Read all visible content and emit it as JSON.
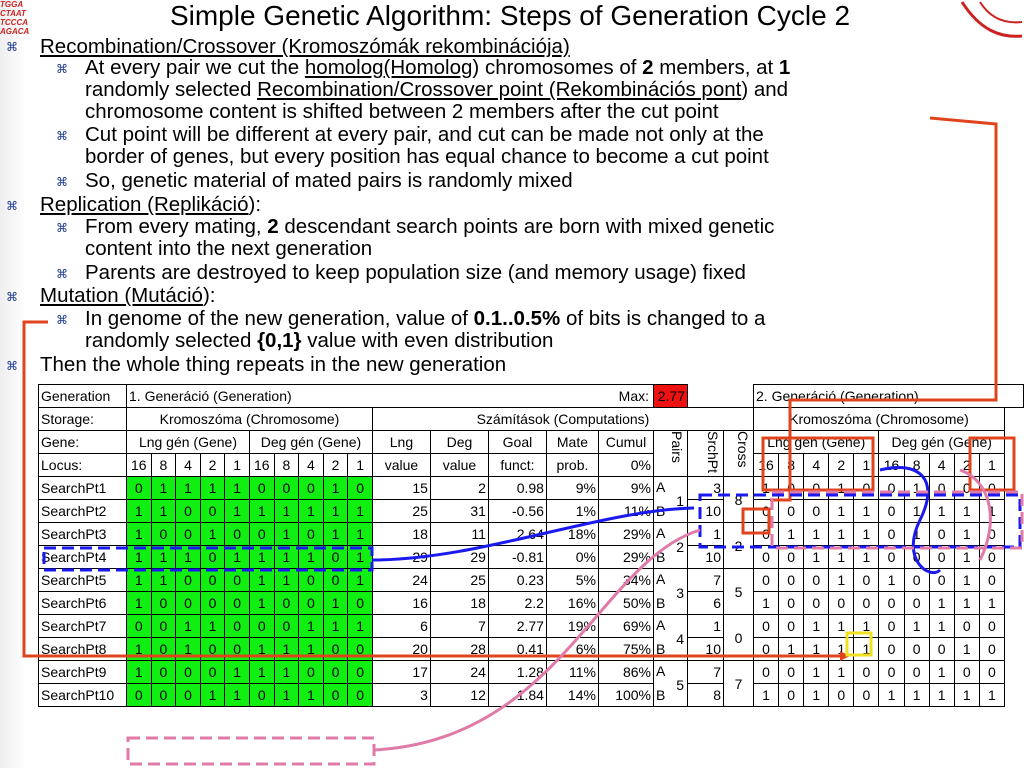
{
  "title": "Simple Genetic Algorithm: Steps of Generation Cycle 2",
  "logo_lines": [
    "TGGA",
    "CTAAT",
    "TCCCA",
    "AGACA"
  ],
  "bullets": {
    "recomb_head": "Recombination/Crossover (Kromoszómák rekombinációja)",
    "recomb_1_a": "At every pair we cut the ",
    "recomb_1_homolog": "homolog(Homolog",
    "recomb_1_b": ") chromosomes of ",
    "recomb_1_two": "2",
    "recomb_1_c": " members, at ",
    "recomb_1_one": "1",
    "recomb_1_d": "randomly selected ",
    "recomb_1_point": "Recombination/Crossover point (Rekombinációs pont",
    "recomb_1_e": ") and",
    "recomb_1_f": "chromosome content is shifted between 2 members after the cut point",
    "recomb_2_a": "Cut point will be different at every pair, and cut can be made not only at the",
    "recomb_2_b": "border of genes, but every position has equal chance to become a cut point",
    "recomb_3": "So, genetic material of mated pairs is randomly mixed",
    "repl_head": "Replication (Replikáció",
    "repl_colon": "):",
    "repl_1_a": "From every mating, ",
    "repl_1_two": "2",
    "repl_1_b": " descendant search points are born with mixed genetic",
    "repl_1_c": "content into the next generation",
    "repl_2": "Parents are destroyed to keep population size (and memory usage) fixed",
    "mut_head": "Mutation (Mutáció",
    "mut_colon": "):",
    "mut_1_a": "In genome of the new generation, value of ",
    "mut_1_pct": "0.1..0.5%",
    "mut_1_b": " of bits is changed to a",
    "mut_1_c": "randomly selected ",
    "mut_1_set": "{0,1}",
    "mut_1_d": " value with even distribution",
    "then": "Then the whole thing repeats in the new generation"
  },
  "table": {
    "generation_label": "Generation",
    "gen1": "1. Generáció (Generation)",
    "max_label": "Max:",
    "max_value": "2.77",
    "gen2": "2. Generáció (Generation)",
    "storage_label": "Storage:",
    "chromosome": "Kromoszóma (Chromosome)",
    "computations": "Számítások (Computations)",
    "chromosome2": "Kromoszóma (Chromosome)",
    "gene_label": "Gene:",
    "lng_gene": "Lng gén (Gene)",
    "deg_gene": "Deg gén (Gene)",
    "lng_value_1": "Lng",
    "lng_value_2": "value",
    "deg_value_1": "Deg",
    "deg_value_2": "value",
    "goal_1": "Goal",
    "goal_2": "funct:",
    "mate_1": "Mate",
    "mate_2": "prob.",
    "cumul": "Cumul",
    "cumul_0": "0%",
    "pairs": "Pairs",
    "srchpt": "SrchPt",
    "cross": "Cross",
    "lng_gene2": "Lng gén (Gene)",
    "deg_gene2": "Deg gén (Gene)",
    "locus_label": "Locus:",
    "locus": [
      "16",
      "8",
      "4",
      "2",
      "1",
      "16",
      "8",
      "4",
      "2",
      "1"
    ],
    "rows": [
      {
        "name": "SearchPt1",
        "bits": [
          "0",
          "1",
          "1",
          "1",
          "1",
          "0",
          "0",
          "0",
          "1",
          "0"
        ],
        "lng": "15",
        "deg": "2",
        "goal": "0.98",
        "mate": "9%",
        "cumul": "9%",
        "ab": "A",
        "srch": "3",
        "nbits": [
          "1",
          "0",
          "0",
          "1",
          "0",
          "0",
          "1",
          "0",
          "0",
          "0"
        ]
      },
      {
        "name": "SearchPt2",
        "bits": [
          "1",
          "1",
          "0",
          "0",
          "1",
          "1",
          "1",
          "1",
          "1",
          "1"
        ],
        "lng": "25",
        "deg": "31",
        "goal": "-0.56",
        "mate": "1%",
        "cumul": "11%",
        "ab": "B",
        "srch": "10",
        "nbits": [
          "0",
          "0",
          "0",
          "1",
          "1",
          "0",
          "1",
          "1",
          "1",
          "1"
        ]
      },
      {
        "name": "SearchPt3",
        "bits": [
          "1",
          "0",
          "0",
          "1",
          "0",
          "0",
          "1",
          "0",
          "1",
          "1"
        ],
        "lng": "18",
        "deg": "11",
        "goal": "2.64",
        "mate": "18%",
        "cumul": "29%",
        "ab": "A",
        "srch": "1",
        "nbits": [
          "0",
          "1",
          "1",
          "1",
          "1",
          "0",
          "1",
          "0",
          "1",
          "0"
        ]
      },
      {
        "name": "SearchPt4",
        "bits": [
          "1",
          "1",
          "1",
          "0",
          "1",
          "1",
          "1",
          "1",
          "0",
          "1"
        ],
        "lng": "29",
        "deg": "29",
        "goal": "-0.81",
        "mate": "0%",
        "cumul": "29%",
        "ab": "B",
        "srch": "10",
        "nbits": [
          "0",
          "0",
          "1",
          "1",
          "1",
          "0",
          "0",
          "0",
          "1",
          "0"
        ]
      },
      {
        "name": "SearchPt5",
        "bits": [
          "1",
          "1",
          "0",
          "0",
          "0",
          "1",
          "1",
          "0",
          "0",
          "1"
        ],
        "lng": "24",
        "deg": "25",
        "goal": "0.23",
        "mate": "5%",
        "cumul": "34%",
        "ab": "A",
        "srch": "7",
        "nbits": [
          "0",
          "0",
          "0",
          "1",
          "0",
          "1",
          "0",
          "0",
          "1",
          "0"
        ]
      },
      {
        "name": "SearchPt6",
        "bits": [
          "1",
          "0",
          "0",
          "0",
          "0",
          "1",
          "0",
          "0",
          "1",
          "0"
        ],
        "lng": "16",
        "deg": "18",
        "goal": "2.2",
        "mate": "16%",
        "cumul": "50%",
        "ab": "B",
        "srch": "6",
        "nbits": [
          "1",
          "0",
          "0",
          "0",
          "0",
          "0",
          "0",
          "1",
          "1",
          "1"
        ]
      },
      {
        "name": "SearchPt7",
        "bits": [
          "0",
          "0",
          "1",
          "1",
          "0",
          "0",
          "0",
          "1",
          "1",
          "1"
        ],
        "lng": "6",
        "deg": "7",
        "goal": "2.77",
        "mate": "19%",
        "cumul": "69%",
        "ab": "A",
        "srch": "1",
        "nbits": [
          "0",
          "0",
          "1",
          "1",
          "1",
          "0",
          "1",
          "1",
          "0",
          "0"
        ]
      },
      {
        "name": "SearchPt8",
        "bits": [
          "1",
          "0",
          "1",
          "0",
          "0",
          "1",
          "1",
          "1",
          "0",
          "0"
        ],
        "lng": "20",
        "deg": "28",
        "goal": "0.41",
        "mate": "6%",
        "cumul": "75%",
        "ab": "B",
        "srch": "10",
        "nbits": [
          "0",
          "1",
          "1",
          "1",
          "1",
          "0",
          "0",
          "0",
          "1",
          "0"
        ]
      },
      {
        "name": "SearchPt9",
        "bits": [
          "1",
          "0",
          "0",
          "0",
          "1",
          "1",
          "1",
          "0",
          "0",
          "0"
        ],
        "lng": "17",
        "deg": "24",
        "goal": "1.28",
        "mate": "11%",
        "cumul": "86%",
        "ab": "A",
        "srch": "7",
        "nbits": [
          "0",
          "0",
          "1",
          "1",
          "0",
          "0",
          "0",
          "1",
          "0",
          "0"
        ]
      },
      {
        "name": "SearchPt10",
        "bits": [
          "0",
          "0",
          "0",
          "1",
          "1",
          "0",
          "1",
          "1",
          "0",
          "0"
        ],
        "lng": "3",
        "deg": "12",
        "goal": "1.84",
        "mate": "14%",
        "cumul": "100%",
        "ab": "B",
        "srch": "8",
        "nbits": [
          "1",
          "0",
          "1",
          "0",
          "0",
          "1",
          "1",
          "1",
          "1",
          "1"
        ]
      }
    ],
    "pairs_vals": [
      "1",
      "2",
      "3",
      "4",
      "5"
    ],
    "cross_vals": [
      "8",
      "2",
      "5",
      "0",
      "7"
    ]
  },
  "colors": {
    "green": "#11ee11",
    "red": "#ee1111",
    "blue": "#1a1aee",
    "orange": "#e0441c",
    "pink": "#e07aa8",
    "yellow": "#f0e020"
  }
}
